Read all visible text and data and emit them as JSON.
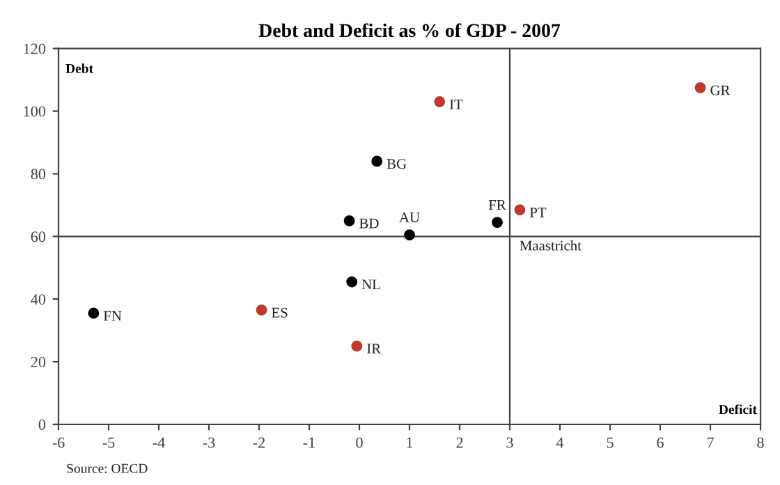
{
  "chart_data": {
    "type": "scatter",
    "title": "Debt and Deficit as % of GDP - 2007",
    "xlabel": "Deficit",
    "ylabel": "Debt",
    "series": [
      {
        "color": "#c0392b",
        "x": [
          6.8,
          1.6,
          3.2,
          -1.95,
          -0.05
        ],
        "values": [
          107.5,
          103,
          68.5,
          36.5,
          25
        ]
      },
      {
        "color": "#000000",
        "x": [
          0.35,
          -0.2,
          1.0,
          2.75,
          -0.15,
          -5.3
        ],
        "values": [
          84,
          65,
          60.5,
          64.5,
          45.5,
          35.5
        ]
      }
    ],
    "marker": "circle",
    "grid": false,
    "legend": false,
    "xlim": [
      -6,
      8
    ],
    "xticks": [
      -6,
      -5,
      -4,
      -3,
      -2,
      -1,
      0,
      1,
      2,
      3,
      4,
      5,
      6,
      7,
      8
    ],
    "ylim": [
      0,
      120
    ],
    "yticks": [
      0,
      20,
      40,
      60,
      80,
      100,
      120
    ],
    "ref_lines": [
      {
        "axis": "y",
        "value": 60,
        "color": "#404040"
      },
      {
        "axis": "x",
        "value": 3,
        "color": "#404040"
      }
    ],
    "annotations": [
      {
        "text": "GR",
        "x": 6.8,
        "y": 107.5
      },
      {
        "text": "IT",
        "x": 1.6,
        "y": 103
      },
      {
        "text": "PT",
        "x": 3.2,
        "y": 68.5
      },
      {
        "text": "ES",
        "x": -1.95,
        "y": 36.5
      },
      {
        "text": "IR",
        "x": -0.05,
        "y": 25
      },
      {
        "text": "BG",
        "x": 0.35,
        "y": 84
      },
      {
        "text": "BD",
        "x": -0.2,
        "y": 65
      },
      {
        "text": "AU",
        "x": 1.0,
        "y": 60.5
      },
      {
        "text": "FR",
        "x": 2.75,
        "y": 64.5
      },
      {
        "text": "NL",
        "x": -0.15,
        "y": 45.5
      },
      {
        "text": "FN",
        "x": -5.3,
        "y": 35.5
      },
      {
        "text": "Maastricht",
        "x": 3,
        "y": 60
      },
      "Source: OECD"
    ]
  }
}
